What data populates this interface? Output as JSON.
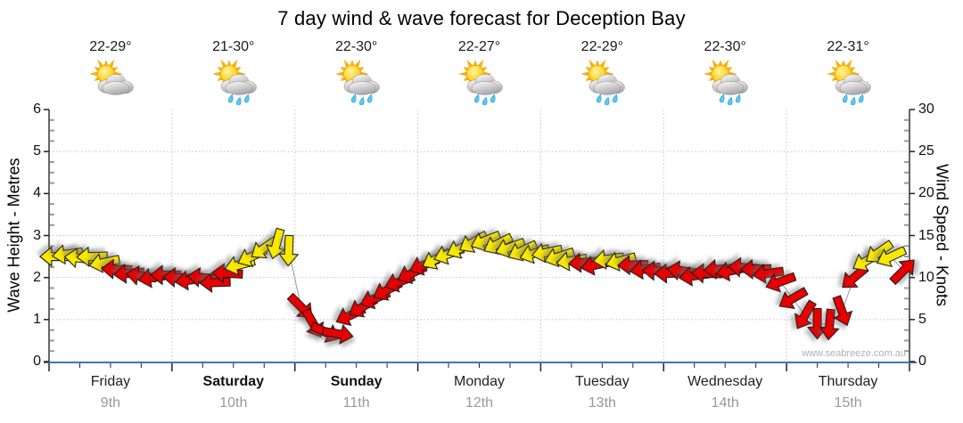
{
  "title": "7 day wind & wave forecast for Deception Bay",
  "watermark": "www.seabreeze.com.au",
  "axes": {
    "left_title": "Wave Height - Metres",
    "right_title": "Wind Speed - Knots",
    "left_ticks": [
      0,
      1,
      2,
      3,
      4,
      5,
      6
    ],
    "right_ticks": [
      0,
      5,
      10,
      15,
      20,
      25,
      30
    ],
    "left_range": [
      0,
      6
    ],
    "right_range": [
      0,
      30
    ]
  },
  "days": [
    {
      "name": "Friday",
      "date": "9th",
      "temp": "22-29°",
      "icon": "sun-cloud",
      "bold": false
    },
    {
      "name": "Saturday",
      "date": "10th",
      "temp": "21-30°",
      "icon": "sun-cloud-rain",
      "bold": true
    },
    {
      "name": "Sunday",
      "date": "11th",
      "temp": "22-30°",
      "icon": "sun-cloud-rain",
      "bold": true
    },
    {
      "name": "Monday",
      "date": "12th",
      "temp": "22-27°",
      "icon": "sun-cloud-rain",
      "bold": false
    },
    {
      "name": "Tuesday",
      "date": "13th",
      "temp": "22-29°",
      "icon": "sun-cloud-rain",
      "bold": false
    },
    {
      "name": "Wednesday",
      "date": "14th",
      "temp": "22-30°",
      "icon": "sun-cloud-rain",
      "bold": false
    },
    {
      "name": "Thursday",
      "date": "15th",
      "temp": "22-31°",
      "icon": "sun-cloud-rain",
      "bold": false
    }
  ],
  "chart_data": {
    "type": "line",
    "marker": "wind-direction-arrows",
    "title": "7 day wind & wave forecast for Deception Bay",
    "x_categories": [
      "Friday 9th",
      "Saturday 10th",
      "Sunday 11th",
      "Monday 12th",
      "Tuesday 13th",
      "Wednesday 14th",
      "Thursday 15th"
    ],
    "ylabel_left": "Wave Height - Metres",
    "ylabel_right": "Wind Speed - Knots",
    "ylim_left": [
      0,
      6
    ],
    "ylim_right": [
      0,
      30
    ],
    "grid": "dotted, horizontal every 1 m (5 kn), vertical at day boundaries",
    "legend": "arrow color: yellow = lighter wind, red = stronger/onshore wind; arrow points in direction wind blows",
    "columns": [
      "day_index",
      "day_fraction",
      "wind_speed_knots",
      "arrow_direction_deg_cw_from_east",
      "color(y|r)"
    ],
    "points": [
      [
        0,
        0.05,
        12.5,
        180,
        "y"
      ],
      [
        0,
        0.15,
        12.8,
        172,
        "y"
      ],
      [
        0,
        0.25,
        12.3,
        186,
        "y"
      ],
      [
        0,
        0.35,
        12.5,
        178,
        "y"
      ],
      [
        0,
        0.45,
        11.8,
        168,
        "y"
      ],
      [
        0,
        0.55,
        11.0,
        182,
        "r"
      ],
      [
        0,
        0.65,
        10.5,
        175,
        "r"
      ],
      [
        0,
        0.75,
        10.2,
        188,
        "r"
      ],
      [
        0,
        0.85,
        10.0,
        170,
        "r"
      ],
      [
        0,
        0.95,
        10.3,
        180,
        "r"
      ],
      [
        1,
        0.05,
        10.0,
        183,
        "r"
      ],
      [
        1,
        0.15,
        9.7,
        172,
        "r"
      ],
      [
        1,
        0.25,
        10.0,
        186,
        "r"
      ],
      [
        1,
        0.35,
        9.4,
        178,
        "r"
      ],
      [
        1,
        0.45,
        10.5,
        183,
        "r"
      ],
      [
        1,
        0.55,
        11.5,
        165,
        "y"
      ],
      [
        1,
        0.65,
        12.5,
        155,
        "y"
      ],
      [
        1,
        0.75,
        13.5,
        145,
        "y"
      ],
      [
        1,
        0.85,
        14.0,
        105,
        "y"
      ],
      [
        1,
        0.95,
        13.2,
        92,
        "y"
      ],
      [
        2,
        0.05,
        6.5,
        45,
        "r"
      ],
      [
        2,
        0.15,
        4.5,
        60,
        "r"
      ],
      [
        2,
        0.25,
        3.5,
        25,
        "r"
      ],
      [
        2,
        0.35,
        3.3,
        10,
        "r"
      ],
      [
        2,
        0.45,
        5.5,
        155,
        "r"
      ],
      [
        2,
        0.55,
        6.5,
        150,
        "r"
      ],
      [
        2,
        0.65,
        7.5,
        158,
        "r"
      ],
      [
        2,
        0.75,
        8.5,
        152,
        "r"
      ],
      [
        2,
        0.85,
        9.5,
        160,
        "r"
      ],
      [
        2,
        0.95,
        10.5,
        155,
        "r"
      ],
      [
        3,
        0.05,
        11.5,
        158,
        "r"
      ],
      [
        3,
        0.15,
        12.2,
        152,
        "y"
      ],
      [
        3,
        0.25,
        12.8,
        160,
        "y"
      ],
      [
        3,
        0.35,
        13.5,
        155,
        "y"
      ],
      [
        3,
        0.45,
        14.2,
        150,
        "y"
      ],
      [
        3,
        0.55,
        14.4,
        158,
        "y"
      ],
      [
        3,
        0.65,
        14.0,
        153,
        "y"
      ],
      [
        3,
        0.75,
        13.6,
        160,
        "y"
      ],
      [
        3,
        0.85,
        13.2,
        155,
        "y"
      ],
      [
        3,
        0.95,
        12.9,
        162,
        "y"
      ],
      [
        4,
        0.05,
        13.0,
        168,
        "y"
      ],
      [
        4,
        0.15,
        12.5,
        162,
        "y"
      ],
      [
        4,
        0.25,
        12.0,
        170,
        "y"
      ],
      [
        4,
        0.35,
        11.8,
        175,
        "r"
      ],
      [
        4,
        0.45,
        11.5,
        168,
        "r"
      ],
      [
        4,
        0.55,
        12.2,
        172,
        "y"
      ],
      [
        4,
        0.65,
        12.0,
        165,
        "y"
      ],
      [
        4,
        0.75,
        11.5,
        178,
        "r"
      ],
      [
        4,
        0.85,
        11.0,
        172,
        "r"
      ],
      [
        4,
        0.95,
        10.8,
        182,
        "r"
      ],
      [
        5,
        0.05,
        10.5,
        178,
        "r"
      ],
      [
        5,
        0.15,
        10.8,
        188,
        "r"
      ],
      [
        5,
        0.25,
        10.2,
        172,
        "r"
      ],
      [
        5,
        0.35,
        10.5,
        182,
        "r"
      ],
      [
        5,
        0.45,
        11.0,
        176,
        "r"
      ],
      [
        5,
        0.55,
        10.8,
        168,
        "r"
      ],
      [
        5,
        0.65,
        11.2,
        184,
        "r"
      ],
      [
        5,
        0.75,
        11.0,
        178,
        "r"
      ],
      [
        5,
        0.85,
        10.5,
        172,
        "r"
      ],
      [
        5,
        0.95,
        9.5,
        160,
        "r"
      ],
      [
        6,
        0.05,
        7.5,
        150,
        "r"
      ],
      [
        6,
        0.15,
        5.5,
        120,
        "r"
      ],
      [
        6,
        0.25,
        4.5,
        90,
        "r"
      ],
      [
        6,
        0.35,
        4.4,
        95,
        "r"
      ],
      [
        6,
        0.45,
        6.0,
        70,
        "r"
      ],
      [
        6,
        0.55,
        10.0,
        140,
        "r"
      ],
      [
        6,
        0.65,
        12.0,
        150,
        "y"
      ],
      [
        6,
        0.75,
        13.0,
        145,
        "y"
      ],
      [
        6,
        0.85,
        12.5,
        155,
        "y"
      ],
      [
        6,
        0.95,
        10.8,
        315,
        "r"
      ]
    ]
  },
  "colors": {
    "arrow_yellow": "#F9E800",
    "arrow_red": "#E60000",
    "arrow_outline": "#1a1a1a",
    "trace_line": "#999999",
    "grid": "#c4c4c4",
    "axis": "#333333",
    "bottom_axis_blue": "#4a6fb8",
    "date_gray": "#999999",
    "watermark_gray": "#b0b0b0"
  }
}
